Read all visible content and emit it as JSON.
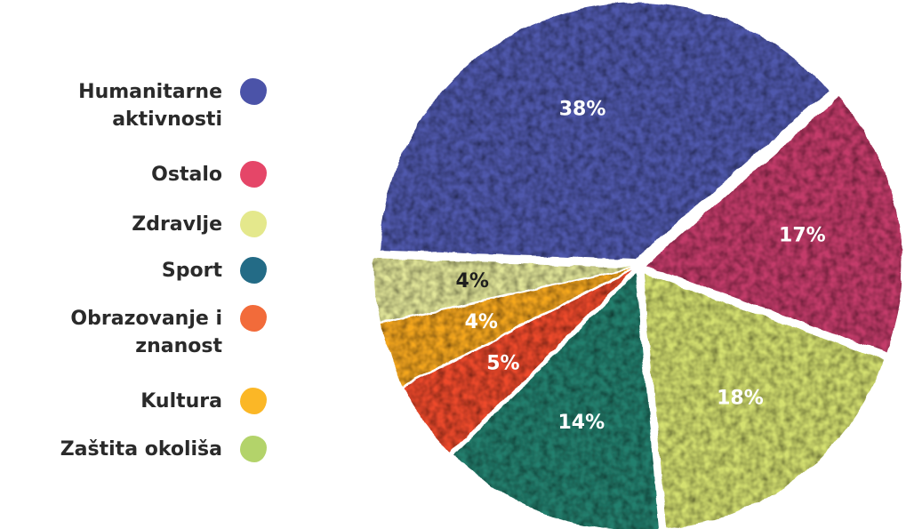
{
  "chart_data": {
    "type": "pie",
    "categories": [
      "Humanitarne aktivnosti",
      "Ostalo",
      "Zaštita okoliša",
      "Sport",
      "Obrazovanje i znanost",
      "Kultura",
      "Zdravlje"
    ],
    "values": [
      38,
      17,
      18,
      14,
      5,
      4,
      4
    ],
    "value_labels": [
      "38%",
      "17%",
      "18%",
      "14%",
      "5%",
      "4%",
      "4%"
    ],
    "colors": [
      "#5058ad",
      "#c43a6a",
      "#d4e070",
      "#24806e",
      "#ef4a2c",
      "#f7a81c",
      "#e3e79a"
    ],
    "label_colors": [
      "#ffffff",
      "#ffffff",
      "#ffffff",
      "#ffffff",
      "#ffffff",
      "#ffffff",
      "#1e1e1e"
    ],
    "legend_placement": "left",
    "legend": [
      {
        "label": "Humanitarne\naktivnosti",
        "color": "#4b53a8"
      },
      {
        "label": "Ostalo",
        "color": "#e54668"
      },
      {
        "label": "Zdravlje",
        "color": "#e4e88c"
      },
      {
        "label": "Sport",
        "color": "#236b86"
      },
      {
        "label": "Obrazovanje i\nznanost",
        "color": "#f26b3a"
      },
      {
        "label": "Kultura",
        "color": "#fbb726"
      },
      {
        "label": "Zaštita okoliša",
        "color": "#b3d36a"
      }
    ]
  }
}
